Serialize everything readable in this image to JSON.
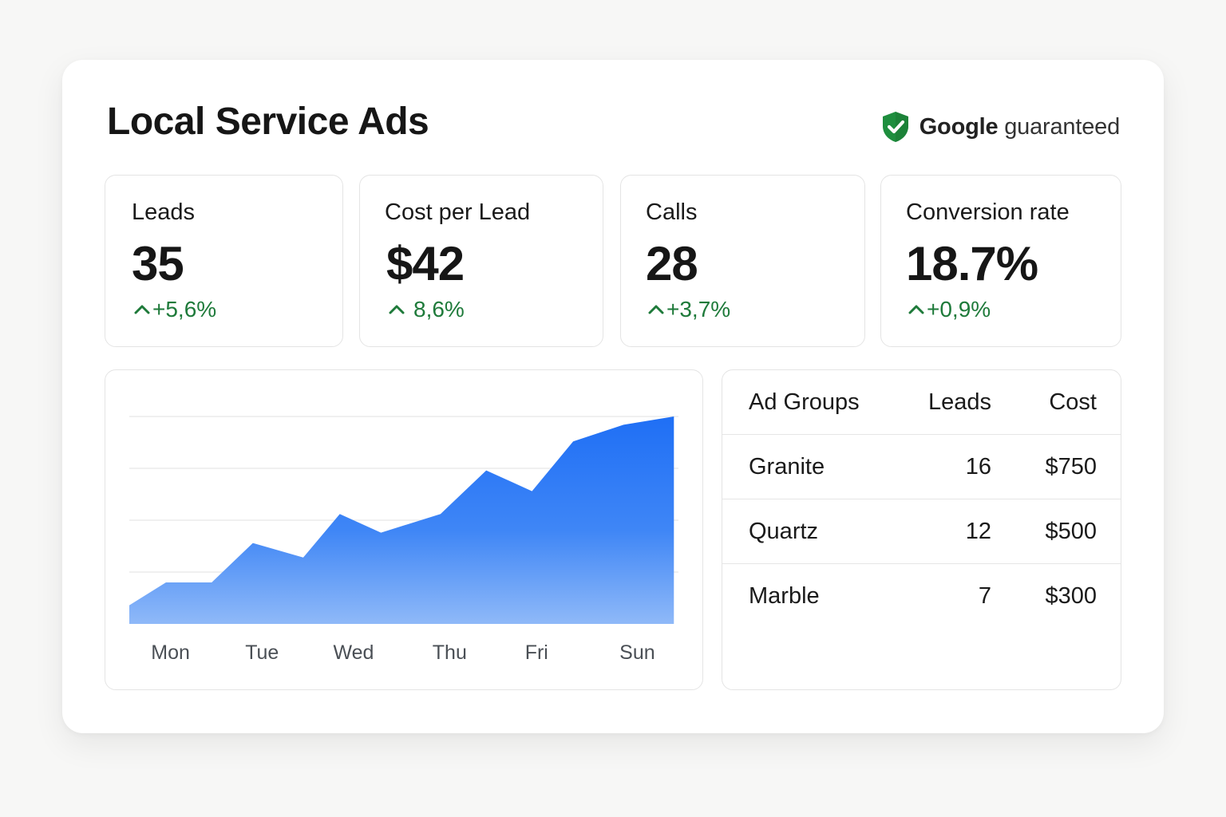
{
  "header": {
    "title": "Local Service Ads",
    "badge": {
      "brand": "Google",
      "text": "guaranteed",
      "icon": "shield-check-icon",
      "icon_color": "#1e8e3e"
    }
  },
  "kpis": [
    {
      "label": "Leads",
      "value": "35",
      "delta": "+5,6%",
      "trend": "up"
    },
    {
      "label": "Cost per Lead",
      "value": "$42",
      "delta": "8,6%",
      "trend": "up"
    },
    {
      "label": "Calls",
      "value": "28",
      "delta": "+3,7%",
      "trend": "up"
    },
    {
      "label": "Conversion rate",
      "value": "18.7%",
      "delta": "+0,9%",
      "trend": "up"
    }
  ],
  "colors": {
    "positive": "#1e7a3a",
    "chart_fill_top": "#1f6ff5",
    "chart_fill_bottom": "#8fb9f8"
  },
  "chart_data": {
    "type": "area",
    "x_tick_labels": [
      "Mon",
      "Tue",
      "Wed",
      "Thu",
      "Fri",
      "Sun"
    ],
    "x": [
      0,
      0.4,
      0.9,
      1.35,
      1.9,
      2.3,
      2.75,
      3.4,
      3.9,
      4.4,
      4.85,
      5.4,
      5.95
    ],
    "values": [
      0.9,
      2.0,
      2.0,
      3.9,
      3.2,
      5.3,
      4.4,
      5.3,
      7.4,
      6.4,
      8.8,
      9.6,
      10.0
    ],
    "title": "",
    "xlabel": "",
    "ylabel": "",
    "ylim": [
      0,
      10
    ],
    "xlim": [
      0,
      6
    ],
    "grid": true,
    "legend": "none"
  },
  "table": {
    "headers": [
      "Ad Groups",
      "Leads",
      "Cost"
    ],
    "rows": [
      [
        "Granite",
        "16",
        "$750"
      ],
      [
        "Quartz",
        "12",
        "$500"
      ],
      [
        "Marble",
        "7",
        "$300"
      ]
    ]
  }
}
